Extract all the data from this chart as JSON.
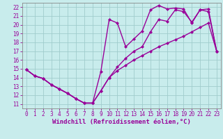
{
  "xlabel": "Windchill (Refroidissement éolien,°C)",
  "bg_color": "#c8ecec",
  "grid_color": "#a0cccc",
  "line_color": "#990099",
  "xlim": [
    -0.5,
    23.5
  ],
  "ylim": [
    10.5,
    22.5
  ],
  "xticks": [
    0,
    1,
    2,
    3,
    4,
    5,
    6,
    7,
    8,
    9,
    10,
    11,
    12,
    13,
    14,
    15,
    16,
    17,
    18,
    19,
    20,
    21,
    22,
    23
  ],
  "yticks": [
    11,
    12,
    13,
    14,
    15,
    16,
    17,
    18,
    19,
    20,
    21,
    22
  ],
  "line1_x": [
    0,
    1,
    2,
    3,
    4,
    5,
    6,
    7,
    8,
    9,
    10,
    11,
    12,
    13,
    14,
    15,
    16,
    17,
    18,
    19,
    20,
    21,
    22,
    23
  ],
  "line1_y": [
    14.9,
    14.2,
    13.9,
    13.2,
    12.7,
    12.2,
    11.6,
    11.1,
    11.1,
    12.5,
    14.0,
    14.8,
    15.4,
    16.0,
    16.5,
    17.0,
    17.5,
    17.9,
    18.3,
    18.7,
    19.2,
    19.7,
    20.2,
    17.0
  ],
  "line2_x": [
    0,
    1,
    2,
    3,
    4,
    5,
    6,
    7,
    8,
    9,
    10,
    11,
    12,
    13,
    14,
    15,
    16,
    17,
    18,
    19,
    20,
    21,
    22,
    23
  ],
  "line2_y": [
    14.9,
    14.2,
    13.9,
    13.2,
    12.7,
    12.2,
    11.6,
    11.1,
    11.1,
    12.5,
    14.0,
    15.2,
    16.2,
    17.0,
    17.5,
    19.2,
    20.6,
    20.4,
    21.7,
    21.5,
    20.3,
    21.7,
    21.8,
    17.0
  ],
  "line3_x": [
    0,
    1,
    2,
    3,
    4,
    5,
    6,
    7,
    8,
    9,
    10,
    11,
    12,
    13,
    14,
    15,
    16,
    17,
    18,
    19,
    20,
    21,
    22,
    23
  ],
  "line3_y": [
    14.9,
    14.2,
    13.9,
    13.2,
    12.7,
    12.2,
    11.6,
    11.1,
    11.1,
    14.7,
    20.6,
    20.2,
    17.5,
    18.4,
    19.3,
    21.7,
    22.2,
    21.8,
    21.9,
    21.8,
    20.2,
    21.7,
    21.5,
    17.0
  ],
  "marker": "D",
  "markersize": 2.5,
  "linewidth": 1.0,
  "tick_fontsize": 5.5,
  "label_fontsize": 6.5
}
